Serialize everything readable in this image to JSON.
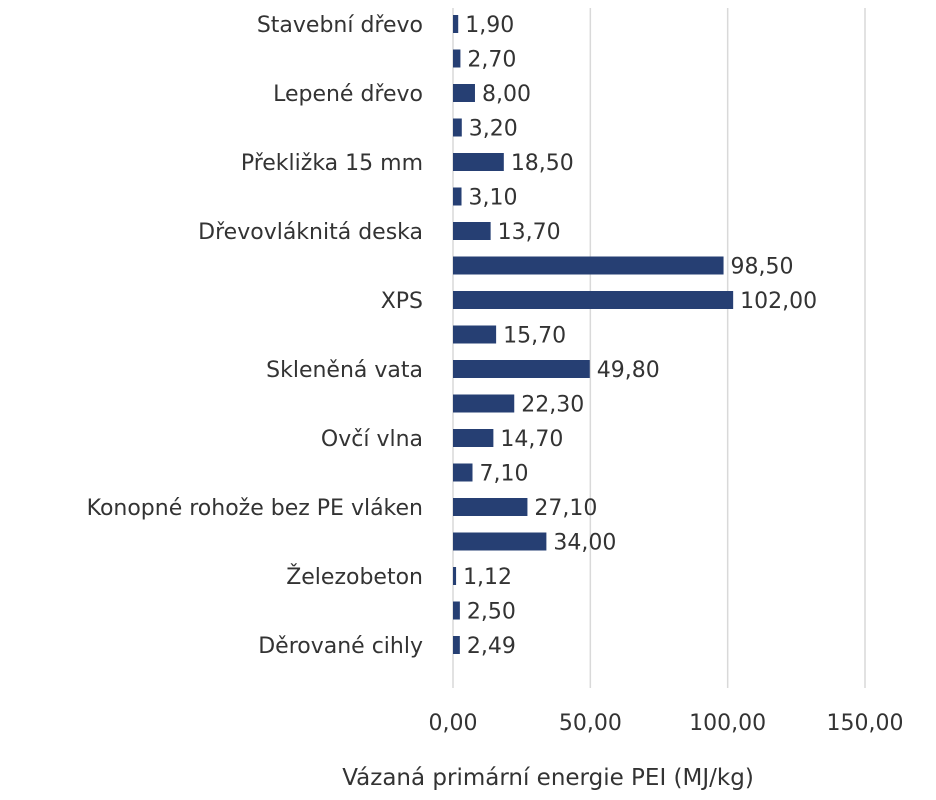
{
  "chart_data": {
    "type": "bar",
    "orientation": "horizontal",
    "xlabel": "Vázaná primární energie PEI (MJ/kg)",
    "xlim": [
      0,
      150
    ],
    "xticks": [
      "0,00",
      "50,00",
      "100,00",
      "150,00"
    ],
    "xtick_values": [
      0,
      50,
      100,
      150
    ],
    "grid": true,
    "bar_color": "#263f73",
    "categories": [
      "Stavební dřevo",
      "",
      "Lepené dřevo",
      "",
      "Překližka 15 mm",
      "",
      "Dřevovláknitá deska",
      "",
      "XPS",
      "",
      "Skleněná vata",
      "",
      "Ovčí vlna",
      "",
      "Konopné rohože bez PE vláken",
      "",
      "Železobeton",
      "",
      "Děrované cihly"
    ],
    "values": [
      1.9,
      2.7,
      8.0,
      3.2,
      18.5,
      3.1,
      13.7,
      98.5,
      102.0,
      15.7,
      49.8,
      22.3,
      14.7,
      7.1,
      27.1,
      34.0,
      1.12,
      2.5,
      2.49
    ],
    "value_labels": [
      "1,90",
      "2,70",
      "8,00",
      "3,20",
      "18,50",
      "3,10",
      "13,70",
      "98,50",
      "102,00",
      "15,70",
      "49,80",
      "22,30",
      "14,70",
      "7,10",
      "27,10",
      "34,00",
      "1,12",
      "2,50",
      "2,49"
    ],
    "category_label_rows": [
      0,
      2,
      4,
      6,
      8,
      10,
      12,
      14,
      16,
      18
    ]
  }
}
